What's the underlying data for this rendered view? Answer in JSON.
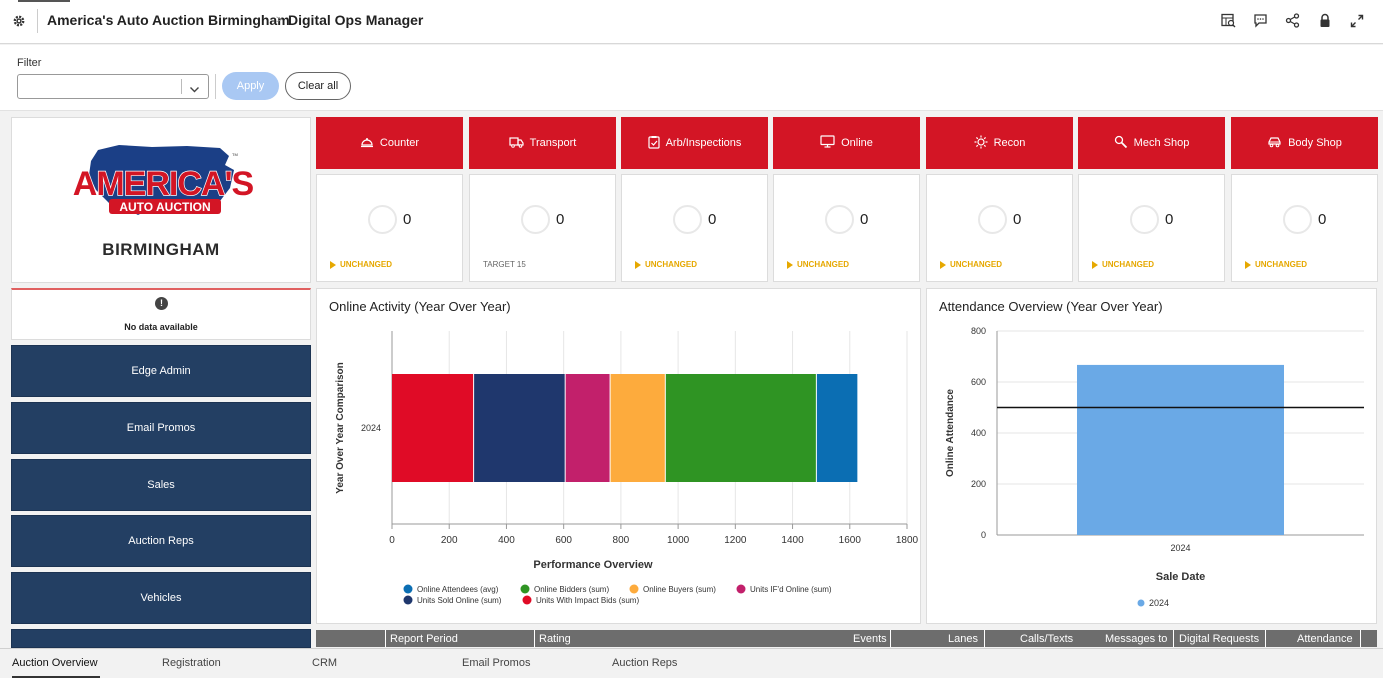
{
  "header": {
    "org": "America's Auto Auction Birmingham",
    "separator": ">",
    "page": "Digital Ops Manager",
    "tools": [
      "report-search-icon",
      "comment-icon",
      "share-icon",
      "lock-icon",
      "expand-icon"
    ]
  },
  "filter": {
    "label": "Filter",
    "value": "",
    "apply_label": "Apply",
    "clear_label": "Clear all"
  },
  "logo": {
    "line1": "AMERICA'S",
    "line2": "AUTO AUCTION",
    "tm": "TM",
    "city": "BIRMINGHAM"
  },
  "alert": {
    "icon": "!",
    "text": "No data available"
  },
  "nav": [
    "Edge Admin",
    "Email Promos",
    "Sales",
    "Auction Reps",
    "Vehicles"
  ],
  "categories": [
    {
      "label": "Counter",
      "icon": "bell-icon",
      "value": "0",
      "status": "UNCHANGED",
      "status_type": "warn"
    },
    {
      "label": "Transport",
      "icon": "truck-icon",
      "value": "0",
      "status": "TARGET 15",
      "status_type": "info"
    },
    {
      "label": "Arb/Inspections",
      "icon": "clipboard-icon",
      "value": "0",
      "status": "UNCHANGED",
      "status_type": "warn"
    },
    {
      "label": "Online",
      "icon": "monitor-icon",
      "value": "0",
      "status": "UNCHANGED",
      "status_type": "warn"
    },
    {
      "label": "Recon",
      "icon": "sun-icon",
      "value": "0",
      "status": "UNCHANGED",
      "status_type": "warn"
    },
    {
      "label": "Mech Shop",
      "icon": "wrench-icon",
      "value": "0",
      "status": "UNCHANGED",
      "status_type": "warn"
    },
    {
      "label": "Body Shop",
      "icon": "car-icon",
      "value": "0",
      "status": "UNCHANGED",
      "status_type": "warn"
    }
  ],
  "colors": {
    "brand_red": "#d31525",
    "nav_blue": "#233f63",
    "warn": "#e6a800"
  },
  "chart_data": [
    {
      "type": "bar",
      "orientation": "horizontal",
      "stacked": true,
      "title": "Online Activity (Year Over Year)",
      "xlabel": "Performance Overview",
      "ylabel": "Year Over Year Comparison",
      "categories": [
        "2024"
      ],
      "xlim": [
        0,
        1800
      ],
      "xticks": [
        "0",
        "200",
        "400",
        "600",
        "800",
        "1000",
        "1200",
        "1400",
        "1600",
        "1800"
      ],
      "grid": true,
      "series": [
        {
          "name": "Units With Impact Bids (sum)",
          "color": "#e00b26",
          "values": [
            287
          ]
        },
        {
          "name": "Units Sold Online (sum)",
          "color": "#1f376d",
          "values": [
            320
          ]
        },
        {
          "name": "Units IF'd Online (sum)",
          "color": "#c2206b",
          "values": [
            157
          ]
        },
        {
          "name": "Online Buyers (sum)",
          "color": "#fdab3d",
          "values": [
            193
          ]
        },
        {
          "name": "Online Bidders (sum)",
          "color": "#2f9423",
          "values": [
            528
          ]
        },
        {
          "name": "Online Attendees (avg)",
          "color": "#0b6eb3",
          "values": [
            145
          ]
        }
      ],
      "legend_order": [
        "Online Attendees (avg)",
        "Online Bidders (sum)",
        "Online Buyers (sum)",
        "Units IF'd Online (sum)",
        "Units Sold Online (sum)",
        "Units With Impact Bids (sum)"
      ],
      "legend": "bottom"
    },
    {
      "type": "bar",
      "title": "Attendance Overview (Year Over Year)",
      "xlabel": "Sale Date",
      "ylabel": "Online Attendance",
      "categories": [
        "2024"
      ],
      "series": [
        {
          "name": "2024",
          "color": "#6aa9e6",
          "values": [
            667
          ]
        }
      ],
      "reference_line": 500,
      "ylim": [
        0,
        800
      ],
      "yticks": [
        "0",
        "200",
        "400",
        "600",
        "800"
      ],
      "grid": true,
      "legend": "bottom"
    }
  ],
  "table": {
    "headers": [
      "Report Period",
      "Rating",
      "Events",
      "Lanes",
      "Calls/Texts",
      "Messages to",
      "Digital Requests",
      "Attendance"
    ]
  },
  "bottom_tabs": [
    "Auction Overview",
    "Registration",
    "CRM",
    "Email Promos",
    "Auction Reps"
  ]
}
